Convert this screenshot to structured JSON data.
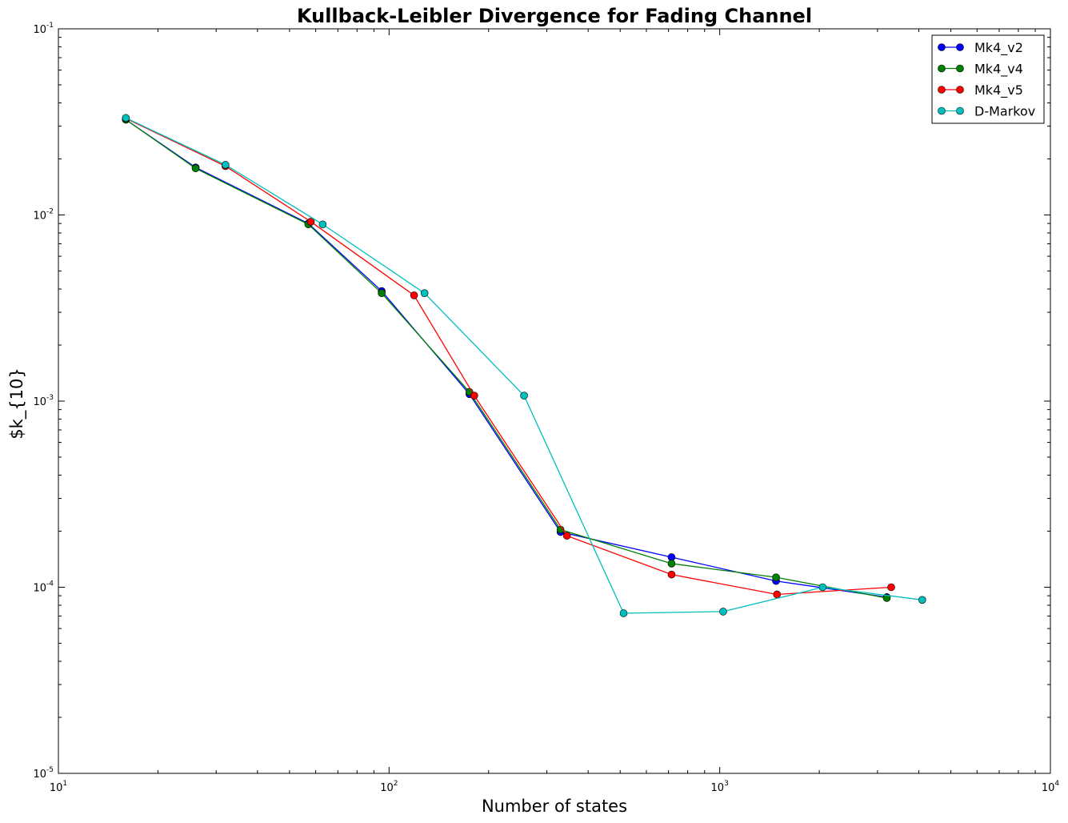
{
  "chart_data": {
    "type": "line",
    "title": "Kullback-Leibler Divergence for Fading Channel",
    "xlabel": "Number of states",
    "ylabel": "$k_{10}",
    "xscale": "log",
    "yscale": "log",
    "xlim": [
      10,
      10000
    ],
    "ylim": [
      1e-05,
      0.1
    ],
    "x_ticks": [
      {
        "base": "10",
        "exp": "1",
        "value": 10
      },
      {
        "base": "10",
        "exp": "2",
        "value": 100
      },
      {
        "base": "10",
        "exp": "3",
        "value": 1000
      },
      {
        "base": "10",
        "exp": "4",
        "value": 10000
      }
    ],
    "y_ticks": [
      {
        "base": "10",
        "exp": "-5",
        "value": 1e-05
      },
      {
        "base": "10",
        "exp": "-4",
        "value": 0.0001
      },
      {
        "base": "10",
        "exp": "-3",
        "value": 0.001
      },
      {
        "base": "10",
        "exp": "-2",
        "value": 0.01
      },
      {
        "base": "10",
        "exp": "-1",
        "value": 0.1
      }
    ],
    "legend_position": "top-right",
    "series": [
      {
        "name": "Mk4_v2",
        "color": "#0000ff",
        "x": [
          16,
          26,
          57,
          95,
          175,
          330,
          715,
          1480,
          3200
        ],
        "y": [
          0.0325,
          0.018,
          0.009,
          0.0039,
          0.00109,
          0.000198,
          0.000145,
          0.000108,
          8.85e-05
        ]
      },
      {
        "name": "Mk4_v4",
        "color": "#008000",
        "x": [
          16,
          26,
          57,
          95,
          175,
          330,
          715,
          1480,
          3200
        ],
        "y": [
          0.0325,
          0.0178,
          0.0089,
          0.0038,
          0.00112,
          0.000204,
          0.000134,
          0.000113,
          8.75e-05
        ]
      },
      {
        "name": "Mk4_v5",
        "color": "#ff0000",
        "x": [
          16,
          32,
          58,
          119,
          181,
          345,
          715,
          1490,
          3300
        ],
        "y": [
          0.033,
          0.0183,
          0.0092,
          0.0037,
          0.00107,
          0.000189,
          0.000117,
          9.15e-05,
          0.0001
        ]
      },
      {
        "name": "D-Markov",
        "color": "#00bfbf",
        "x": [
          16,
          32,
          63,
          128,
          256,
          512,
          1024,
          2048,
          4096
        ],
        "y": [
          0.0332,
          0.0186,
          0.0089,
          0.0038,
          0.00107,
          7.25e-05,
          7.4e-05,
          0.0001,
          8.55e-05
        ]
      }
    ]
  }
}
